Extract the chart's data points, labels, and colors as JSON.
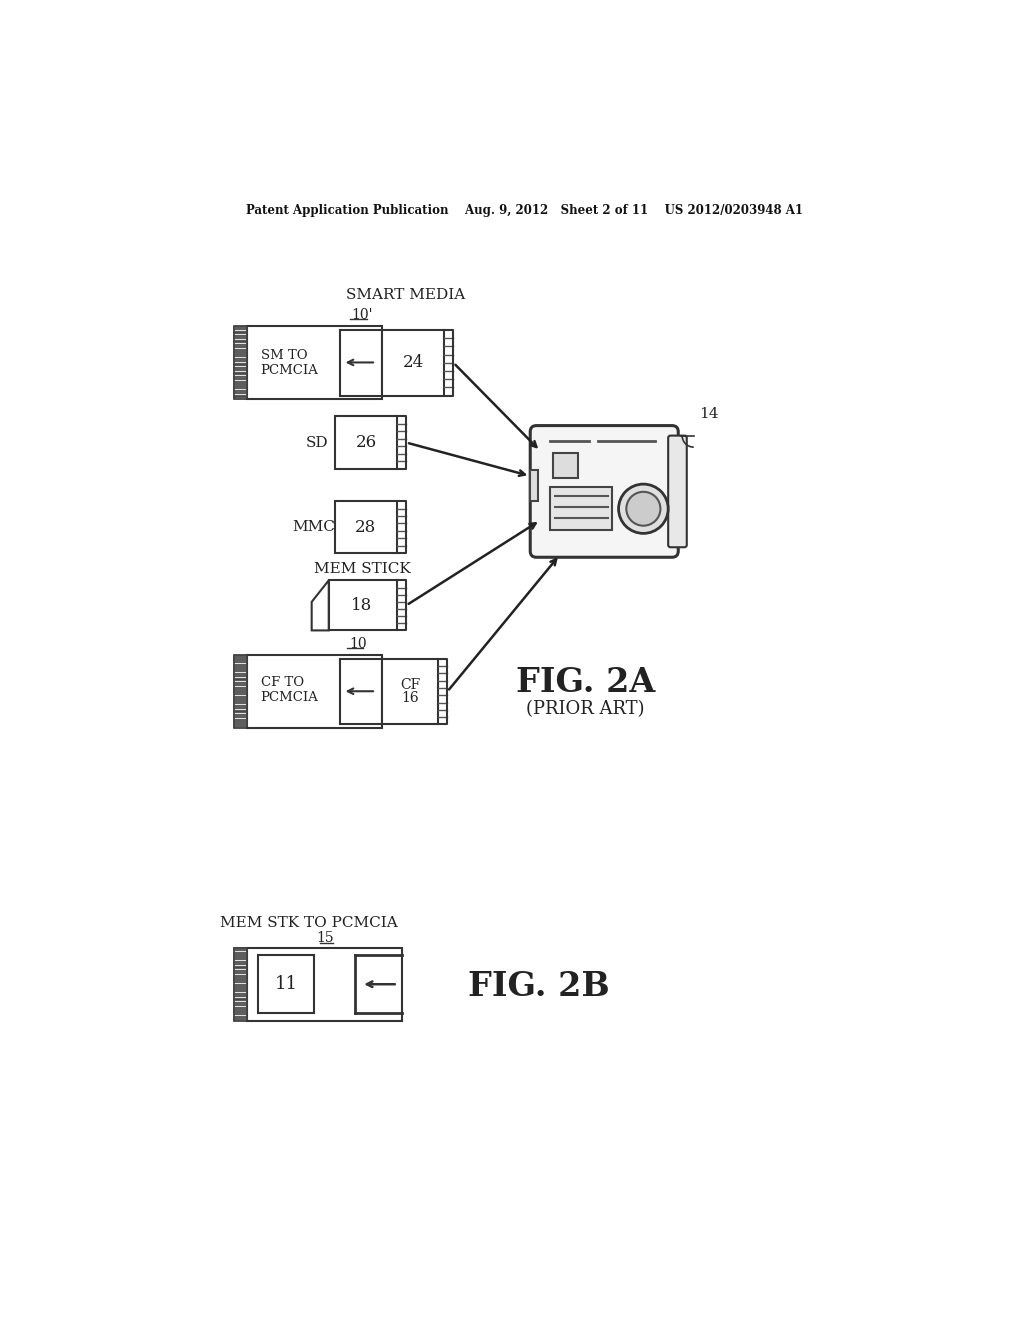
{
  "bg_color": "#ffffff",
  "title_line": "Patent Application Publication    Aug. 9, 2012   Sheet 2 of 11    US 2012/0203948 A1",
  "fig2a_label": "FIG. 2A",
  "fig2a_sub": "(PRIOR ART)",
  "fig2b_label": "FIG. 2B",
  "smart_media_label": "SMART MEDIA",
  "sd_label": "SD",
  "mmc_label": "MMC",
  "mem_stick_label": "MEM STICK",
  "mem_stk_label": "MEM STK TO PCMCIA",
  "sm_pcmcia_label": "SM TO  10'",
  "sm_pcmcia_label2": "PCMCIA",
  "cf_pcmcia_label": "CF TO  10",
  "cf_pcmcia_label2": "PCMCIA",
  "num_24": "24",
  "num_26": "26",
  "num_28": "28",
  "num_18": "18",
  "num_cf16_a": "CF",
  "num_cf16_b": "16",
  "num_14": "14",
  "num_11": "11",
  "num_15": "15"
}
